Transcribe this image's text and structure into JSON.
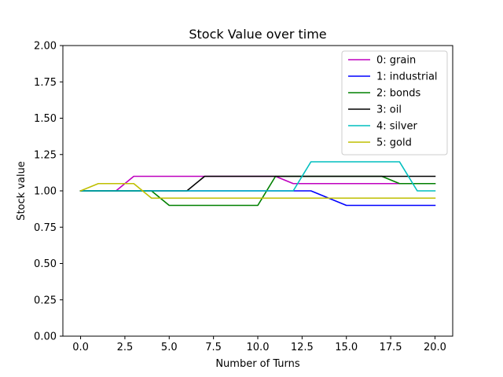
{
  "chart_data": {
    "type": "line",
    "title": "Stock Value over time",
    "xlabel": "Number of Turns",
    "ylabel": "Stock value",
    "xlim": [
      -1,
      21
    ],
    "ylim": [
      0,
      2
    ],
    "xticks": [
      0,
      2.5,
      5,
      7.5,
      10,
      12.5,
      15,
      17.5,
      20
    ],
    "xtick_labels": [
      "0.0",
      "2.5",
      "5.0",
      "7.5",
      "10.0",
      "12.5",
      "15.0",
      "17.5",
      "20.0"
    ],
    "yticks": [
      0,
      0.25,
      0.5,
      0.75,
      1.0,
      1.25,
      1.5,
      1.75,
      2.0
    ],
    "ytick_labels": [
      "0.00",
      "0.25",
      "0.50",
      "0.75",
      "1.00",
      "1.25",
      "1.50",
      "1.75",
      "2.00"
    ],
    "grid": false,
    "legend_position": "top-right",
    "x": [
      0,
      1,
      2,
      3,
      4,
      5,
      6,
      7,
      8,
      9,
      10,
      11,
      12,
      13,
      14,
      15,
      16,
      17,
      18,
      19,
      20
    ],
    "series": [
      {
        "name": "0: grain",
        "color": "#bf00bf",
        "values": [
          1.0,
          1.0,
          1.0,
          1.1,
          1.1,
          1.1,
          1.1,
          1.1,
          1.1,
          1.1,
          1.1,
          1.1,
          1.05,
          1.05,
          1.05,
          1.05,
          1.05,
          1.05,
          1.05,
          1.05,
          1.05
        ]
      },
      {
        "name": "1: industrial",
        "color": "#0000ff",
        "values": [
          1.0,
          1.0,
          1.0,
          1.0,
          1.0,
          1.0,
          1.0,
          1.0,
          1.0,
          1.0,
          1.0,
          1.0,
          1.0,
          1.0,
          0.95,
          0.9,
          0.9,
          0.9,
          0.9,
          0.9,
          0.9
        ]
      },
      {
        "name": "2: bonds",
        "color": "#008000",
        "values": [
          1.0,
          1.0,
          1.0,
          1.0,
          1.0,
          0.9,
          0.9,
          0.9,
          0.9,
          0.9,
          0.9,
          1.1,
          1.1,
          1.1,
          1.1,
          1.1,
          1.1,
          1.1,
          1.05,
          1.05,
          1.05
        ]
      },
      {
        "name": "3: oil",
        "color": "#000000",
        "values": [
          1.0,
          1.0,
          1.0,
          1.0,
          1.0,
          1.0,
          1.0,
          1.1,
          1.1,
          1.1,
          1.1,
          1.1,
          1.1,
          1.1,
          1.1,
          1.1,
          1.1,
          1.1,
          1.1,
          1.1,
          1.1
        ]
      },
      {
        "name": "4: silver",
        "color": "#00bfbf",
        "values": [
          1.0,
          1.0,
          1.0,
          1.0,
          1.0,
          1.0,
          1.0,
          1.0,
          1.0,
          1.0,
          1.0,
          1.0,
          1.0,
          1.2,
          1.2,
          1.2,
          1.2,
          1.2,
          1.2,
          1.0,
          1.0
        ]
      },
      {
        "name": "5: gold",
        "color": "#bfbf00",
        "values": [
          1.0,
          1.05,
          1.05,
          1.05,
          0.95,
          0.95,
          0.95,
          0.95,
          0.95,
          0.95,
          0.95,
          0.95,
          0.95,
          0.95,
          0.95,
          0.95,
          0.95,
          0.95,
          0.95,
          0.95,
          0.95
        ]
      }
    ]
  }
}
